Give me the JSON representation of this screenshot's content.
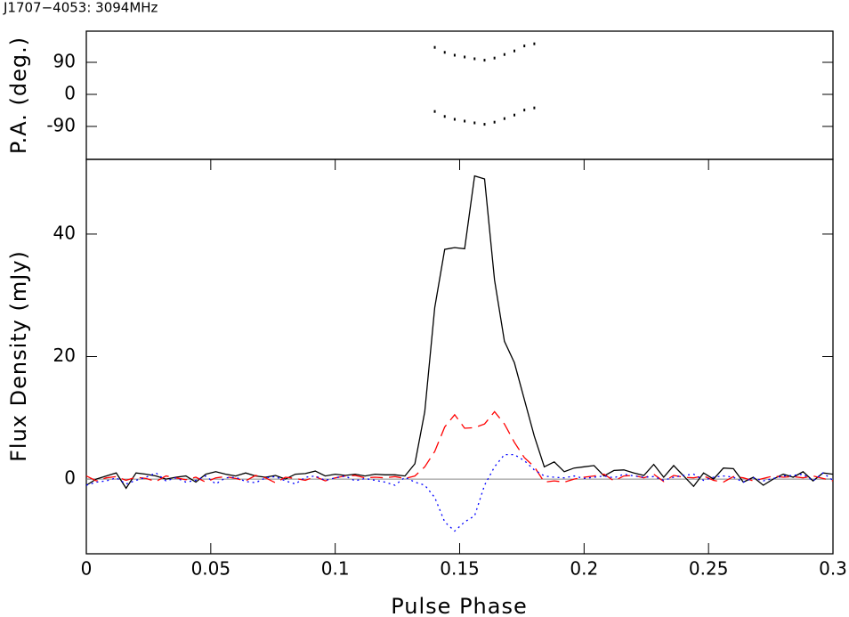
{
  "chart_data": [
    {
      "type": "scatter",
      "title": "J1707−4053: 3094MHz",
      "ylabel": "P.A. (deg.)",
      "x": [
        0.14,
        0.144,
        0.148,
        0.152,
        0.156,
        0.16,
        0.164,
        0.168,
        0.172,
        0.176,
        0.18
      ],
      "series": [
        {
          "color": "#000000",
          "values": [
            -48,
            -62,
            -70,
            -75,
            -80,
            -84,
            -78,
            -68,
            -58,
            -44,
            -38
          ]
        },
        {
          "color": "#000000",
          "values": [
            132,
            118,
            110,
            105,
            100,
            96,
            102,
            112,
            122,
            136,
            142
          ]
        }
      ],
      "xlim": [
        0,
        0.3
      ],
      "ylim": [
        -182.5,
        177.5
      ],
      "yticks": [
        -90,
        0,
        90
      ]
    },
    {
      "type": "line",
      "xlabel": "Pulse Phase",
      "ylabel": "Flux Density (mJy)",
      "x": [
        0,
        0.004,
        0.008,
        0.012,
        0.016,
        0.02,
        0.024,
        0.028,
        0.032,
        0.036,
        0.04,
        0.044,
        0.048,
        0.052,
        0.056,
        0.06,
        0.064,
        0.068,
        0.072,
        0.076,
        0.08,
        0.084,
        0.088,
        0.092,
        0.096,
        0.1,
        0.104,
        0.108,
        0.112,
        0.116,
        0.12,
        0.124,
        0.128,
        0.132,
        0.136,
        0.14,
        0.144,
        0.148,
        0.152,
        0.156,
        0.16,
        0.164,
        0.168,
        0.172,
        0.176,
        0.18,
        0.184,
        0.188,
        0.192,
        0.196,
        0.2,
        0.204,
        0.208,
        0.212,
        0.216,
        0.22,
        0.224,
        0.228,
        0.232,
        0.236,
        0.24,
        0.244,
        0.248,
        0.252,
        0.256,
        0.26,
        0.264,
        0.268,
        0.272,
        0.276,
        0.28,
        0.284,
        0.288,
        0.292,
        0.296,
        0.3
      ],
      "series": [
        {
          "color": "#000000",
          "dash": "solid",
          "values": [
            -1,
            0,
            0.5,
            1,
            -1.5,
            1,
            0.8,
            0.5,
            0,
            0.3,
            0.5,
            -0.5,
            0.8,
            1.2,
            0.8,
            0.5,
            1,
            0.5,
            0.3,
            0.6,
            0,
            0.8,
            0.9,
            1.3,
            0.5,
            0.8,
            0.6,
            0.8,
            0.5,
            0.8,
            0.7,
            0.7,
            0.5,
            2.5,
            11,
            28,
            37.5,
            37.8,
            37.6,
            49.5,
            49,
            32.5,
            22.5,
            19,
            13,
            7,
            2,
            2.8,
            1.2,
            1.8,
            2,
            2.2,
            0.5,
            1.4,
            1.5,
            1,
            0.6,
            2.4,
            0.3,
            2.2,
            0.5,
            -1.2,
            1,
            0,
            1.8,
            1.7,
            -0.5,
            0.3,
            -1,
            0,
            0.8,
            0.3,
            1.2,
            -0.3,
            1,
            0.8
          ]
        },
        {
          "color": "#ff0000",
          "dash": "dashed",
          "values": [
            0.5,
            -0.3,
            0.2,
            0.4,
            -0.2,
            0.3,
            0.1,
            -0.4,
            0.5,
            0.2,
            -0.1,
            0.3,
            -0.5,
            0.2,
            0.4,
            0.1,
            -0.3,
            0.6,
            0.2,
            -0.6,
            0.3,
            0.1,
            -0.2,
            0.4,
            -0.3,
            0.2,
            0.5,
            0.6,
            0.2,
            0.3,
            0.2,
            0.4,
            0.1,
            0.5,
            2,
            4.5,
            8.5,
            10.5,
            8.3,
            8.4,
            9,
            11,
            9,
            6,
            3.5,
            2,
            -0.5,
            -0.3,
            -0.5,
            0,
            0.3,
            0.5,
            0.8,
            -0.3,
            0.5,
            0.6,
            0.2,
            0.8,
            -0.4,
            0.6,
            0.3,
            0.2,
            0.5,
            -0.2,
            -0.5,
            0.4,
            0.2,
            -0.3,
            0.1,
            0.5,
            0.3,
            0.4,
            0.2,
            0.5,
            0.1,
            -0.3
          ]
        },
        {
          "color": "#0000ff",
          "dash": "dotted",
          "values": [
            -1,
            -0.5,
            -0.3,
            0.2,
            -0.8,
            -0.2,
            0.3,
            1,
            -0.3,
            0.2,
            -0.5,
            -0.2,
            0.5,
            -0.8,
            0.2,
            0.3,
            -0.4,
            -0.6,
            0.2,
            0.4,
            -0.3,
            -0.8,
            0.3,
            0.5,
            -0.2,
            0.2,
            0.5,
            -0.3,
            0.1,
            -0.2,
            -0.5,
            -1,
            0.3,
            -0.5,
            -1,
            -3,
            -7,
            -8.5,
            -7,
            -6,
            -1,
            2,
            4,
            4,
            3,
            1.5,
            0.5,
            0.3,
            0.2,
            0.5,
            0.1,
            0.3,
            0.5,
            0.2,
            0.8,
            0.5,
            0.3,
            0.4,
            -0.2,
            0.3,
            0.6,
            0.8,
            -0.2,
            0.3,
            0.5,
            0.3,
            -0.5,
            0.2,
            -0.3,
            0.1,
            0.5,
            0.6,
            0.8,
            -0.3,
            1,
            -0.2
          ]
        }
      ],
      "xlim": [
        0,
        0.3
      ],
      "xticks": [
        0,
        0.05,
        0.1,
        0.15,
        0.2,
        0.25,
        0.3
      ],
      "ylim": [
        -12.2,
        52.2
      ],
      "yticks": [
        0,
        20,
        40
      ],
      "zero_line": true
    }
  ]
}
